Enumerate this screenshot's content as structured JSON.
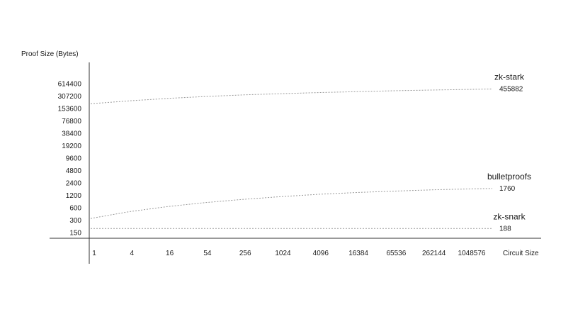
{
  "chart_data": {
    "type": "line",
    "title": "",
    "xlabel": "Circuit Size",
    "ylabel": "Proof Size (Bytes)",
    "x_scale": "log",
    "y_scale": "log",
    "x_ticks": [
      "1",
      "4",
      "16",
      "54",
      "256",
      "1024",
      "4096",
      "16384",
      "65536",
      "262144",
      "1048576"
    ],
    "y_ticks": [
      "150",
      "300",
      "600",
      "1200",
      "2400",
      "4800",
      "9600",
      "19200",
      "38400",
      "76800",
      "153600",
      "307200",
      "614400"
    ],
    "grid": false,
    "legend": "inline labels at right end of each series",
    "series": [
      {
        "name": "zk-stark",
        "end_label": "455882",
        "x": [
          1,
          4,
          16,
          64,
          256,
          1024,
          4096,
          16384,
          65536,
          262144,
          1048576,
          2097152
        ],
        "y": [
          200000,
          235000,
          270000,
          300000,
          328000,
          352000,
          375000,
          395000,
          415000,
          432000,
          448000,
          455882
        ]
      },
      {
        "name": "bulletproofs",
        "end_label": "1760",
        "x": [
          1,
          4,
          16,
          64,
          256,
          1024,
          4096,
          16384,
          65536,
          262144,
          1048576,
          2097152
        ],
        "y": [
          330,
          480,
          640,
          800,
          960,
          1120,
          1280,
          1410,
          1530,
          1640,
          1730,
          1760
        ]
      },
      {
        "name": "zk-snark",
        "end_label": "188",
        "x": [
          1,
          2097152
        ],
        "y": [
          188,
          188
        ]
      }
    ],
    "line_color": "#9a9a9a",
    "axis_color": "#333333"
  }
}
